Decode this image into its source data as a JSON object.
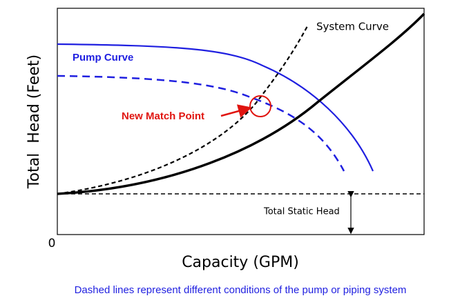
{
  "diagram": {
    "y_axis_label": "Total  Head (Feet)",
    "x_axis_label": "Capacity (GPM)",
    "origin_label": "0",
    "labels": {
      "system_curve": "System Curve",
      "pump_curve": "Pump Curve",
      "match_point": "New Match Point",
      "static_head": "Total Static Head"
    },
    "caption": "Dashed lines represent different conditions of the pump or piping system"
  }
}
